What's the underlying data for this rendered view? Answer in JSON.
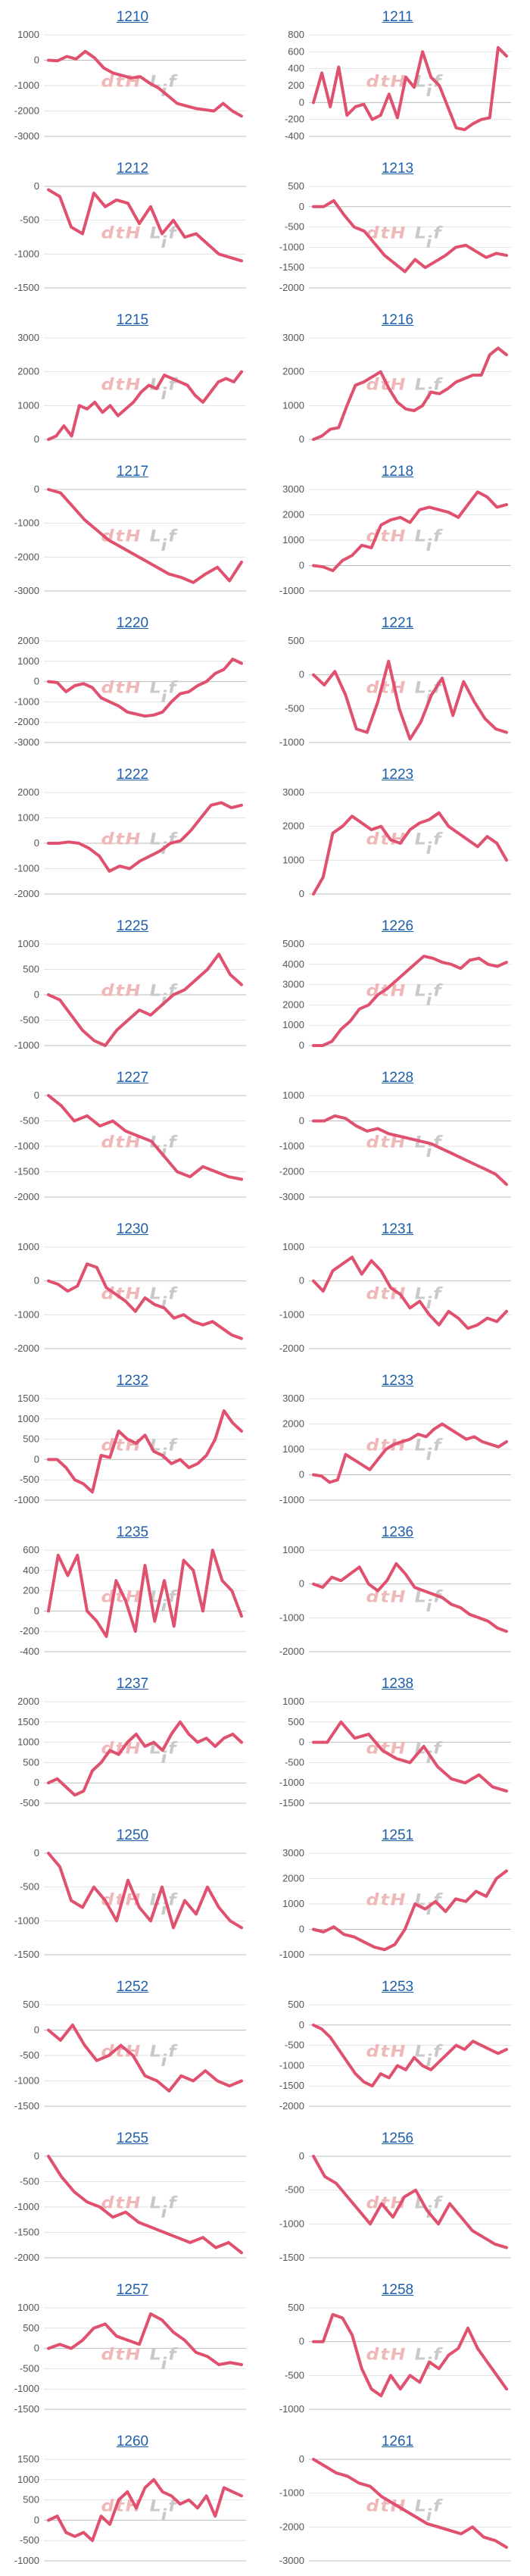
{
  "theme": {
    "line_color": "#e0516f",
    "title_color": "#1f5fa8",
    "grid_color": "#e3e3e3"
  },
  "chart_data": [
    {
      "type": "line",
      "title": "1210",
      "ylim": [
        -3000,
        1000
      ],
      "yticks": [
        1000,
        0,
        -1000,
        -2000,
        -3000
      ],
      "values": [
        0,
        -20,
        150,
        50,
        350,
        100,
        -300,
        -500,
        -600,
        -700,
        -650,
        -900,
        -1100,
        -1400,
        -1700,
        -1800,
        -1900,
        -1950,
        -2000,
        -1700,
        -2000,
        -2200
      ]
    },
    {
      "type": "line",
      "title": "1211",
      "ylim": [
        -400,
        800
      ],
      "yticks": [
        800,
        600,
        400,
        200,
        0,
        -200,
        -400
      ],
      "values": [
        0,
        350,
        -50,
        420,
        -150,
        -50,
        -20,
        -200,
        -150,
        100,
        -180,
        300,
        180,
        600,
        300,
        200,
        -50,
        -300,
        -320,
        -250,
        -200,
        -180,
        650,
        550
      ]
    },
    {
      "type": "line",
      "title": "1212",
      "ylim": [
        -1500,
        0
      ],
      "yticks": [
        0,
        -500,
        -1000,
        -1500
      ],
      "values": [
        -50,
        -150,
        -600,
        -700,
        -100,
        -300,
        -200,
        -250,
        -550,
        -300,
        -700,
        -500,
        -750,
        -700,
        -850,
        -1000,
        -1050,
        -1100
      ]
    },
    {
      "type": "line",
      "title": "1213",
      "ylim": [
        -2000,
        500
      ],
      "yticks": [
        500,
        0,
        -500,
        -1000,
        -1500,
        -2000
      ],
      "values": [
        0,
        0,
        150,
        -200,
        -500,
        -600,
        -900,
        -1200,
        -1400,
        -1600,
        -1300,
        -1500,
        -1350,
        -1200,
        -1000,
        -950,
        -1100,
        -1250,
        -1150,
        -1200
      ]
    },
    {
      "type": "line",
      "title": "1215",
      "ylim": [
        0,
        3000
      ],
      "yticks": [
        3000,
        2000,
        1000,
        0
      ],
      "values": [
        0,
        100,
        400,
        100,
        1000,
        900,
        1100,
        800,
        1000,
        700,
        900,
        1100,
        1400,
        1600,
        1500,
        1900,
        1800,
        1700,
        1600,
        1300,
        1100,
        1400,
        1700,
        1800,
        1700,
        2000
      ]
    },
    {
      "type": "line",
      "title": "1216",
      "ylim": [
        0,
        3000
      ],
      "yticks": [
        3000,
        2000,
        1000,
        0
      ],
      "values": [
        0,
        100,
        300,
        350,
        1000,
        1600,
        1700,
        1850,
        2000,
        1500,
        1100,
        900,
        850,
        1000,
        1400,
        1350,
        1500,
        1700,
        1800,
        1900,
        1900,
        2500,
        2700,
        2500
      ]
    },
    {
      "type": "line",
      "title": "1217",
      "ylim": [
        -3000,
        0
      ],
      "yticks": [
        0,
        -1000,
        -2000,
        -3000
      ],
      "values": [
        0,
        -100,
        -500,
        -900,
        -1200,
        -1500,
        -1700,
        -1900,
        -2100,
        -2300,
        -2500,
        -2600,
        -2750,
        -2500,
        -2300,
        -2700,
        -2150
      ]
    },
    {
      "type": "line",
      "title": "1218",
      "ylim": [
        -1000,
        3000
      ],
      "yticks": [
        3000,
        2000,
        1000,
        0,
        -1000
      ],
      "values": [
        0,
        -50,
        -200,
        200,
        400,
        800,
        700,
        1600,
        1800,
        1900,
        1700,
        2200,
        2300,
        2200,
        2100,
        1900,
        2400,
        2900,
        2700,
        2300,
        2400
      ]
    },
    {
      "type": "line",
      "title": "1220",
      "ylim": [
        -3000,
        2000
      ],
      "yticks": [
        2000,
        1000,
        0,
        -1000,
        -2000,
        -3000
      ],
      "values": [
        0,
        -50,
        -500,
        -200,
        -100,
        -300,
        -800,
        -1000,
        -1200,
        -1500,
        -1600,
        -1700,
        -1650,
        -1500,
        -1000,
        -600,
        -500,
        -200,
        0,
        400,
        600,
        1100,
        900
      ]
    },
    {
      "type": "line",
      "title": "1221",
      "ylim": [
        -1000,
        500
      ],
      "yticks": [
        500,
        0,
        -500,
        -1000
      ],
      "values": [
        0,
        -150,
        50,
        -300,
        -800,
        -850,
        -400,
        200,
        -500,
        -950,
        -700,
        -300,
        -50,
        -600,
        -100,
        -400,
        -650,
        -800,
        -850
      ]
    },
    {
      "type": "line",
      "title": "1222",
      "ylim": [
        -2000,
        2000
      ],
      "yticks": [
        2000,
        1000,
        0,
        -1000,
        -2000
      ],
      "values": [
        0,
        0,
        50,
        0,
        -200,
        -500,
        -1100,
        -900,
        -1000,
        -700,
        -500,
        -300,
        0,
        100,
        500,
        1000,
        1500,
        1600,
        1400,
        1500
      ]
    },
    {
      "type": "line",
      "title": "1223",
      "ylim": [
        0,
        3000
      ],
      "yticks": [
        3000,
        2000,
        1000,
        0
      ],
      "values": [
        0,
        500,
        1800,
        2000,
        2300,
        2100,
        1900,
        2000,
        1600,
        1500,
        1900,
        2100,
        2200,
        2400,
        2000,
        1800,
        1600,
        1400,
        1700,
        1500,
        1000
      ]
    },
    {
      "type": "line",
      "title": "1225",
      "ylim": [
        -1000,
        1000
      ],
      "yticks": [
        1000,
        500,
        0,
        -500,
        -1000
      ],
      "values": [
        0,
        -100,
        -400,
        -700,
        -900,
        -1000,
        -700,
        -500,
        -300,
        -400,
        -200,
        0,
        100,
        300,
        500,
        800,
        400,
        200
      ]
    },
    {
      "type": "line",
      "title": "1226",
      "ylim": [
        0,
        5000
      ],
      "yticks": [
        5000,
        4000,
        3000,
        2000,
        1000,
        0
      ],
      "values": [
        0,
        0,
        200,
        800,
        1200,
        1800,
        2000,
        2500,
        2800,
        3200,
        3600,
        4000,
        4400,
        4300,
        4100,
        4000,
        3800,
        4200,
        4300,
        4000,
        3900,
        4100
      ]
    },
    {
      "type": "line",
      "title": "1227",
      "ylim": [
        -2000,
        0
      ],
      "yticks": [
        0,
        -500,
        -1000,
        -1500,
        -2000
      ],
      "values": [
        0,
        -200,
        -500,
        -400,
        -600,
        -500,
        -700,
        -800,
        -900,
        -1200,
        -1500,
        -1600,
        -1400,
        -1500,
        -1600,
        -1650
      ]
    },
    {
      "type": "line",
      "title": "1228",
      "ylim": [
        -3000,
        1000
      ],
      "yticks": [
        1000,
        0,
        -1000,
        -2000,
        -3000
      ],
      "values": [
        0,
        0,
        200,
        100,
        -200,
        -400,
        -300,
        -500,
        -600,
        -700,
        -800,
        -900,
        -1100,
        -1300,
        -1500,
        -1700,
        -1900,
        -2100,
        -2500
      ]
    },
    {
      "type": "line",
      "title": "1230",
      "ylim": [
        -2000,
        1000
      ],
      "yticks": [
        1000,
        0,
        -1000,
        -2000
      ],
      "values": [
        0,
        -100,
        -300,
        -150,
        500,
        400,
        -200,
        -400,
        -600,
        -900,
        -500,
        -700,
        -800,
        -1100,
        -1000,
        -1200,
        -1300,
        -1200,
        -1400,
        -1600,
        -1700
      ]
    },
    {
      "type": "line",
      "title": "1231",
      "ylim": [
        -2000,
        1000
      ],
      "yticks": [
        1000,
        0,
        -1000,
        -2000
      ],
      "values": [
        0,
        -300,
        300,
        500,
        700,
        200,
        600,
        300,
        -200,
        -400,
        -800,
        -600,
        -1000,
        -1300,
        -900,
        -1100,
        -1400,
        -1300,
        -1100,
        -1200,
        -900
      ]
    },
    {
      "type": "line",
      "title": "1232",
      "ylim": [
        -1000,
        1500
      ],
      "yticks": [
        1500,
        1000,
        500,
        0,
        -500,
        -1000
      ],
      "values": [
        0,
        0,
        -200,
        -500,
        -600,
        -800,
        100,
        50,
        700,
        500,
        400,
        600,
        200,
        100,
        -100,
        0,
        -200,
        -100,
        100,
        500,
        1200,
        900,
        700
      ]
    },
    {
      "type": "line",
      "title": "1233",
      "ylim": [
        -1000,
        3000
      ],
      "yticks": [
        3000,
        2000,
        1000,
        0,
        -1000
      ],
      "values": [
        0,
        -50,
        -300,
        -200,
        800,
        600,
        400,
        200,
        600,
        1000,
        1200,
        1300,
        1400,
        1600,
        1500,
        1800,
        2000,
        1800,
        1600,
        1400,
        1500,
        1300,
        1200,
        1100,
        1300
      ]
    },
    {
      "type": "line",
      "title": "1235",
      "ylim": [
        -400,
        600
      ],
      "yticks": [
        600,
        400,
        200,
        0,
        -200,
        -400
      ],
      "values": [
        0,
        550,
        350,
        550,
        0,
        -100,
        -250,
        300,
        100,
        -200,
        450,
        -100,
        300,
        -150,
        500,
        400,
        0,
        600,
        300,
        200,
        -50
      ]
    },
    {
      "type": "line",
      "title": "1236",
      "ylim": [
        -2000,
        1000
      ],
      "yticks": [
        1000,
        0,
        -1000,
        -2000
      ],
      "values": [
        0,
        -100,
        200,
        100,
        300,
        500,
        0,
        -200,
        100,
        600,
        300,
        -100,
        -200,
        -300,
        -400,
        -600,
        -700,
        -900,
        -1000,
        -1100,
        -1300,
        -1400
      ]
    },
    {
      "type": "line",
      "title": "1237",
      "ylim": [
        -500,
        2000
      ],
      "yticks": [
        2000,
        1500,
        1000,
        500,
        0,
        -500
      ],
      "values": [
        0,
        100,
        -100,
        -300,
        -200,
        300,
        500,
        800,
        700,
        1000,
        1200,
        900,
        1000,
        800,
        1200,
        1500,
        1200,
        1000,
        1100,
        900,
        1100,
        1200,
        1000
      ]
    },
    {
      "type": "line",
      "title": "1238",
      "ylim": [
        -1500,
        1000
      ],
      "yticks": [
        1000,
        500,
        0,
        -500,
        -1000,
        -1500
      ],
      "values": [
        0,
        0,
        500,
        100,
        200,
        -200,
        -400,
        -500,
        -100,
        -600,
        -900,
        -1000,
        -800,
        -1100,
        -1200
      ]
    },
    {
      "type": "line",
      "title": "1250",
      "ylim": [
        -1500,
        0
      ],
      "yticks": [
        0,
        -500,
        -1000,
        -1500
      ],
      "values": [
        0,
        -200,
        -700,
        -800,
        -500,
        -700,
        -1000,
        -400,
        -800,
        -1000,
        -500,
        -1100,
        -700,
        -900,
        -500,
        -800,
        -1000,
        -1100
      ]
    },
    {
      "type": "line",
      "title": "1251",
      "ylim": [
        -1000,
        3000
      ],
      "yticks": [
        3000,
        2000,
        1000,
        0,
        -1000
      ],
      "values": [
        0,
        -100,
        100,
        -200,
        -300,
        -500,
        -700,
        -800,
        -600,
        0,
        1000,
        800,
        1100,
        700,
        1200,
        1100,
        1500,
        1300,
        2000,
        2300
      ]
    },
    {
      "type": "line",
      "title": "1252",
      "ylim": [
        -1500,
        500
      ],
      "yticks": [
        500,
        0,
        -500,
        -1000,
        -1500
      ],
      "values": [
        0,
        -200,
        100,
        -300,
        -600,
        -500,
        -300,
        -500,
        -900,
        -1000,
        -1200,
        -900,
        -1000,
        -800,
        -1000,
        -1100,
        -1000
      ]
    },
    {
      "type": "line",
      "title": "1253",
      "ylim": [
        -2000,
        500
      ],
      "yticks": [
        500,
        0,
        -500,
        -1000,
        -1500,
        -2000
      ],
      "values": [
        0,
        -100,
        -300,
        -600,
        -900,
        -1200,
        -1400,
        -1500,
        -1200,
        -1300,
        -1000,
        -1100,
        -800,
        -1000,
        -1100,
        -900,
        -700,
        -500,
        -600,
        -400,
        -500,
        -600,
        -700,
        -600
      ]
    },
    {
      "type": "line",
      "title": "1255",
      "ylim": [
        -2000,
        0
      ],
      "yticks": [
        0,
        -500,
        -1000,
        -1500,
        -2000
      ],
      "values": [
        0,
        -400,
        -700,
        -900,
        -1000,
        -1200,
        -1100,
        -1300,
        -1400,
        -1500,
        -1600,
        -1700,
        -1600,
        -1800,
        -1700,
        -1900
      ]
    },
    {
      "type": "line",
      "title": "1256",
      "ylim": [
        -1500,
        0
      ],
      "yticks": [
        0,
        -500,
        -1000,
        -1500
      ],
      "values": [
        0,
        -300,
        -400,
        -600,
        -800,
        -1000,
        -700,
        -900,
        -600,
        -500,
        -800,
        -1000,
        -700,
        -900,
        -1100,
        -1200,
        -1300,
        -1350
      ]
    },
    {
      "type": "line",
      "title": "1257",
      "ylim": [
        -1500,
        1000
      ],
      "yticks": [
        1000,
        500,
        0,
        -500,
        -1000,
        -1500
      ],
      "values": [
        0,
        100,
        0,
        200,
        500,
        600,
        300,
        200,
        100,
        850,
        700,
        400,
        200,
        -100,
        -200,
        -400,
        -350,
        -400
      ]
    },
    {
      "type": "line",
      "title": "1258",
      "ylim": [
        -1000,
        500
      ],
      "yticks": [
        500,
        0,
        -500,
        -1000
      ],
      "values": [
        0,
        0,
        400,
        350,
        100,
        -400,
        -700,
        -800,
        -500,
        -700,
        -500,
        -600,
        -300,
        -400,
        -200,
        -100,
        200,
        -100,
        -300,
        -500,
        -700
      ]
    },
    {
      "type": "line",
      "title": "1260",
      "ylim": [
        -1000,
        1500
      ],
      "yticks": [
        1500,
        1000,
        500,
        0,
        -500,
        -1000
      ],
      "values": [
        0,
        100,
        -300,
        -400,
        -300,
        -500,
        100,
        -100,
        500,
        700,
        300,
        800,
        1000,
        700,
        600,
        400,
        500,
        300,
        600,
        100,
        800,
        700,
        600
      ]
    },
    {
      "type": "line",
      "title": "1261",
      "ylim": [
        -3000,
        0
      ],
      "yticks": [
        0,
        -1000,
        -2000,
        -3000
      ],
      "values": [
        0,
        -200,
        -400,
        -500,
        -700,
        -800,
        -1100,
        -1300,
        -1500,
        -1700,
        -1900,
        -2000,
        -2100,
        -2200,
        -2000,
        -2300,
        -2400,
        -2600
      ]
    }
  ]
}
